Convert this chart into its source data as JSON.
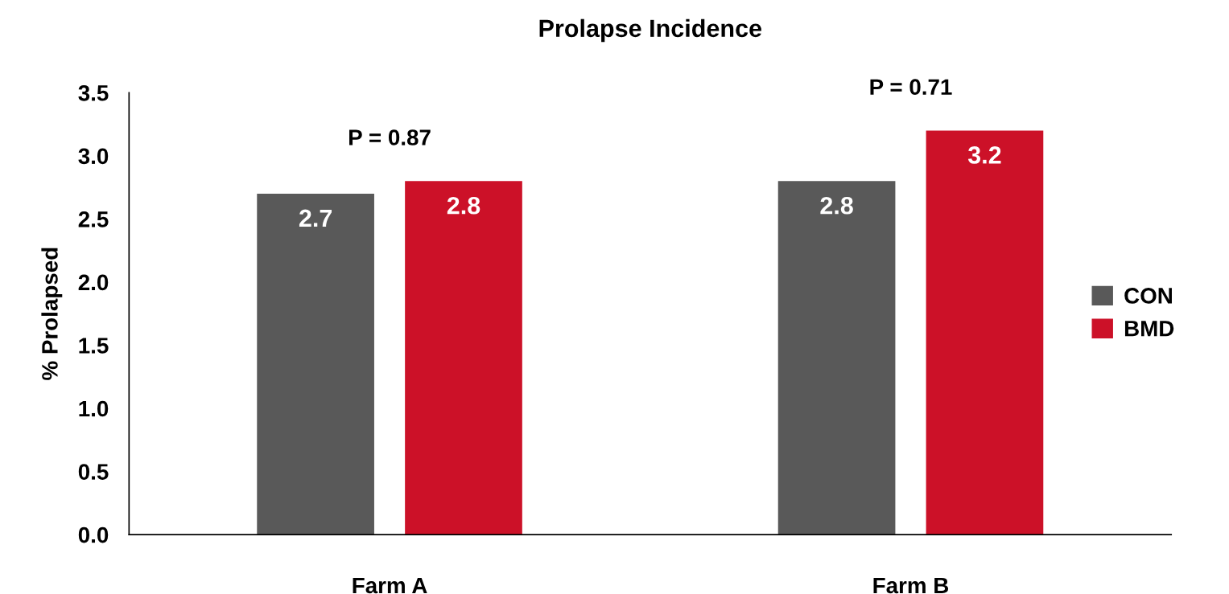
{
  "chart_data": {
    "type": "bar",
    "title": "Prolapse Incidence",
    "ylabel": "% Prolapsed",
    "categories": [
      "Farm A",
      "Farm B"
    ],
    "series": [
      {
        "name": "CON",
        "color": "#595959",
        "values": [
          2.7,
          2.8
        ]
      },
      {
        "name": "BMD",
        "color": "#cc1128",
        "values": [
          2.8,
          3.2
        ]
      }
    ],
    "ylim": [
      0,
      3.5
    ],
    "yticks": [
      {
        "value": 0,
        "label": "0.0"
      },
      {
        "value": 0.5,
        "label": "0.5"
      },
      {
        "value": 1,
        "label": "1.0"
      },
      {
        "value": 1.5,
        "label": "1.5"
      },
      {
        "value": 2,
        "label": "2.0"
      },
      {
        "value": 2.5,
        "label": "2.5"
      },
      {
        "value": 3,
        "label": "3.0"
      },
      {
        "value": 3.5,
        "label": "3.5"
      }
    ],
    "annotations": [
      "P = 0.87",
      "P = 0.71"
    ],
    "data_labels": true,
    "grid": false,
    "legend": "right"
  }
}
